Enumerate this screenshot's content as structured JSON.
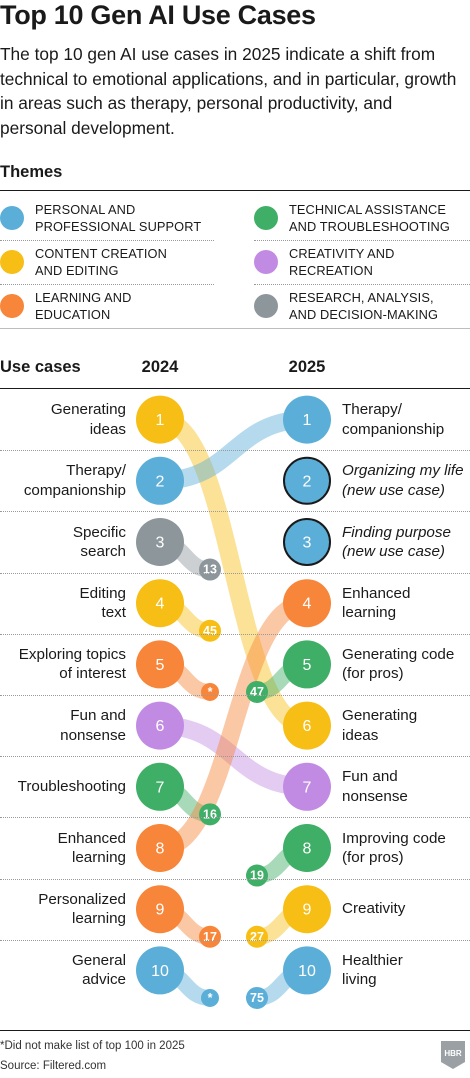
{
  "title": "Top 10 Gen AI Use Cases",
  "subtitle": "The top 10 gen AI use cases in 2025 indicate a shift from technical to emotional applications, and in particular, growth in areas such as therapy, personal productivity, and personal development.",
  "themes_heading": "Themes",
  "themes": [
    {
      "key": "personal",
      "label": "PERSONAL AND\nPROFESSIONAL SUPPORT",
      "color": "#5aaed8"
    },
    {
      "key": "technical",
      "label": "TECHNICAL ASSISTANCE\nAND TROUBLESHOOTING",
      "color": "#3fae66"
    },
    {
      "key": "content",
      "label": "CONTENT CREATION\nAND EDITING",
      "color": "#f7be16"
    },
    {
      "key": "creativity",
      "label": "CREATIVITY AND\nRECREATION",
      "color": "#c28be3"
    },
    {
      "key": "learning",
      "label": "LEARNING AND\nEDUCATION",
      "color": "#f7853a"
    },
    {
      "key": "research",
      "label": "RESEARCH, ANALYSIS,\nAND DECISION-MAKING",
      "color": "#8d969b"
    }
  ],
  "chart_data": {
    "type": "bump",
    "columns_heading": "Use cases",
    "year_labels": [
      "2024",
      "2025"
    ],
    "rows": [
      {
        "rank": 1,
        "label_2024": "Generating\nideas",
        "theme_2024": "content",
        "rank_2025_of_2024_item": 6,
        "label_2025": "Therapy/\ncompanionship",
        "theme_2025": "personal",
        "new_2025": false
      },
      {
        "rank": 2,
        "label_2024": "Therapy/\ncompanionship",
        "theme_2024": "personal",
        "rank_2025_of_2024_item": 1,
        "label_2025": "Organizing my life\n(new use case)",
        "theme_2025": "personal",
        "new_2025": true
      },
      {
        "rank": 3,
        "label_2024": "Specific\nsearch",
        "theme_2024": "research",
        "rank_2025_of_2024_item": 13,
        "label_2025": "Finding purpose\n(new use case)",
        "theme_2025": "personal",
        "new_2025": true
      },
      {
        "rank": 4,
        "label_2024": "Editing\ntext",
        "theme_2024": "content",
        "rank_2025_of_2024_item": 45,
        "label_2025": "Enhanced\nlearning",
        "theme_2025": "learning",
        "new_2025": false
      },
      {
        "rank": 5,
        "label_2024": "Exploring topics\nof interest",
        "theme_2024": "learning",
        "rank_2025_of_2024_item": "*",
        "label_2025": "Generating code\n(for pros)",
        "theme_2025": "technical",
        "new_2025": false
      },
      {
        "rank": 6,
        "label_2024": "Fun and\nnonsense",
        "theme_2024": "creativity",
        "rank_2025_of_2024_item": 7,
        "label_2025": "Generating\nideas",
        "theme_2025": "content",
        "new_2025": false
      },
      {
        "rank": 7,
        "label_2024": "Troubleshooting",
        "theme_2024": "technical",
        "rank_2025_of_2024_item": 16,
        "label_2025": "Fun and\nnonsense",
        "theme_2025": "creativity",
        "new_2025": false
      },
      {
        "rank": 8,
        "label_2024": "Enhanced\nlearning",
        "theme_2024": "learning",
        "rank_2025_of_2024_item": 4,
        "label_2025": "Improving code\n(for pros)",
        "theme_2025": "technical",
        "new_2025": false
      },
      {
        "rank": 9,
        "label_2024": "Personalized\nlearning",
        "theme_2024": "learning",
        "rank_2025_of_2024_item": 17,
        "label_2025": "Creativity",
        "theme_2025": "content",
        "new_2025": false
      },
      {
        "rank": 10,
        "label_2024": "General\nadvice",
        "theme_2024": "personal",
        "rank_2025_of_2024_item": "*",
        "label_2025": "Healthier\nliving",
        "theme_2025": "personal",
        "new_2025": false
      }
    ],
    "prior_2024_rank_of_2025_items": [
      {
        "rank_2025": 5,
        "rank_2024": 47,
        "theme": "technical"
      },
      {
        "rank_2025": 8,
        "rank_2024": 19,
        "theme": "technical"
      },
      {
        "rank_2025": 9,
        "rank_2024": 27,
        "theme": "content"
      },
      {
        "rank_2025": 10,
        "rank_2024": 75,
        "theme": "personal"
      }
    ]
  },
  "footnote": "*Did not make list of top 100 in 2025",
  "source": "Source: Filtered.com",
  "logo_text": "HBR"
}
